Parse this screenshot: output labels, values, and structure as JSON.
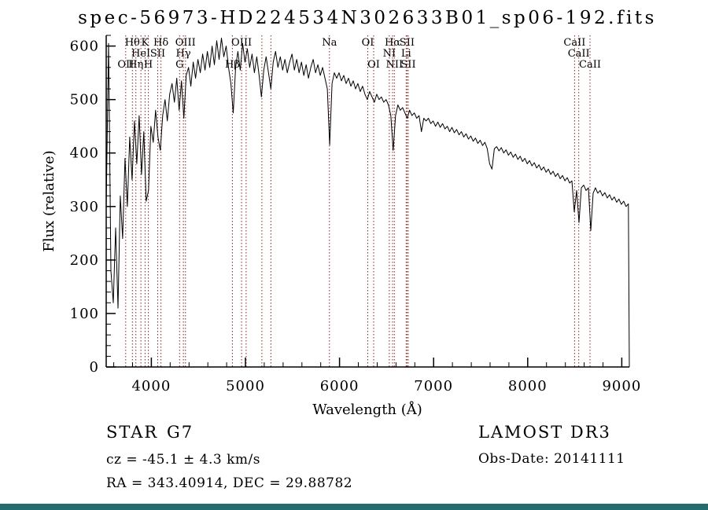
{
  "colors": {
    "marker": "#8b2020",
    "spectrum": "#000000",
    "axis": "#000000",
    "background": "#ffffff",
    "bottom_bar": "#266b6d"
  },
  "annotations": {
    "class": "STAR",
    "subclass": "G7",
    "survey": "LAMOST DR3",
    "cz": "cz = -45.1 ± 4.3 km/s",
    "radec": "RA = 343.40914, DEC = 29.88782",
    "obs_date": "Obs-Date: 20141111"
  },
  "chart_data": {
    "type": "line",
    "title": "spec-56973-HD224534N302633B01_sp06-192.fits",
    "xlabel": "Wavelength (Å)",
    "ylabel": "Flux (relative)",
    "xlim": [
      3520,
      9080
    ],
    "ylim": [
      0,
      620
    ],
    "x_ticks_major": [
      4000,
      5000,
      6000,
      7000,
      8000,
      9000
    ],
    "x_minor_step": 200,
    "y_ticks_major": [
      0,
      100,
      200,
      300,
      400,
      500,
      600
    ],
    "y_minor_step": 20,
    "grid": false,
    "legend": "none",
    "x_start": 3520,
    "x_step": 25,
    "flux": [
      300,
      605,
      180,
      120,
      260,
      110,
      320,
      240,
      390,
      300,
      430,
      350,
      460,
      380,
      470,
      360,
      440,
      310,
      330,
      450,
      420,
      480,
      430,
      405,
      470,
      500,
      460,
      510,
      530,
      495,
      540,
      480,
      535,
      465,
      545,
      560,
      525,
      570,
      540,
      575,
      550,
      585,
      555,
      590,
      560,
      600,
      565,
      610,
      575,
      615,
      580,
      600,
      560,
      530,
      475,
      560,
      590,
      555,
      605,
      570,
      595,
      560,
      585,
      550,
      580,
      545,
      505,
      555,
      580,
      550,
      520,
      570,
      590,
      560,
      580,
      555,
      575,
      550,
      570,
      585,
      555,
      575,
      550,
      570,
      545,
      565,
      540,
      560,
      575,
      550,
      565,
      545,
      560,
      540,
      520,
      415,
      530,
      550,
      540,
      550,
      535,
      545,
      530,
      540,
      525,
      535,
      520,
      530,
      515,
      525,
      510,
      500,
      515,
      505,
      495,
      510,
      500,
      505,
      495,
      500,
      490,
      470,
      405,
      470,
      490,
      480,
      485,
      475,
      465,
      480,
      470,
      475,
      465,
      470,
      440,
      465,
      460,
      465,
      455,
      460,
      450,
      458,
      448,
      455,
      445,
      450,
      440,
      448,
      438,
      444,
      434,
      440,
      430,
      436,
      426,
      432,
      422,
      428,
      418,
      424,
      414,
      420,
      408,
      380,
      370,
      408,
      412,
      404,
      410,
      400,
      406,
      396,
      402,
      392,
      398,
      388,
      394,
      384,
      390,
      380,
      386,
      376,
      382,
      372,
      378,
      368,
      374,
      364,
      370,
      360,
      366,
      356,
      362,
      352,
      358,
      348,
      354,
      344,
      348,
      290,
      330,
      270,
      335,
      340,
      330,
      335,
      255,
      325,
      335,
      325,
      330,
      320,
      326,
      316,
      322,
      312,
      318,
      308,
      314,
      304,
      310,
      300,
      305
    ],
    "spectral_lines": [
      {
        "wavelength": 3727,
        "label": "OII",
        "row": 3
      },
      {
        "wavelength": 3798,
        "label": "Hθ",
        "row": 1
      },
      {
        "wavelength": 3835,
        "label": "Hη",
        "row": 3
      },
      {
        "wavelength": 3889,
        "label": "HeI",
        "row": 2
      },
      {
        "wavelength": 3933,
        "label": "K",
        "row": 1
      },
      {
        "wavelength": 3968,
        "label": "H",
        "row": 3
      },
      {
        "wavelength": 4068,
        "label": "SII",
        "row": 2
      },
      {
        "wavelength": 4102,
        "label": "Hδ",
        "row": 1
      },
      {
        "wavelength": 4300,
        "label": "G",
        "row": 3
      },
      {
        "wavelength": 4340,
        "label": "Hγ",
        "row": 2
      },
      {
        "wavelength": 4363,
        "label": "OIII",
        "row": 1
      },
      {
        "wavelength": 4861,
        "label": "Hβ",
        "row": 3
      },
      {
        "wavelength": 4959,
        "label": "OIII",
        "row": 1
      },
      {
        "wavelength": 5007,
        "label": "",
        "row": 1
      },
      {
        "wavelength": 5175,
        "label": "",
        "row": 1
      },
      {
        "wavelength": 5270,
        "label": "",
        "row": 1
      },
      {
        "wavelength": 5893,
        "label": "Na",
        "row": 1
      },
      {
        "wavelength": 6300,
        "label": "OI",
        "row": 1
      },
      {
        "wavelength": 6363,
        "label": "OI",
        "row": 3
      },
      {
        "wavelength": 6529,
        "label": "NI",
        "row": 2
      },
      {
        "wavelength": 6563,
        "label": "Hα",
        "row": 1
      },
      {
        "wavelength": 6583,
        "label": "NII",
        "row": 3
      },
      {
        "wavelength": 6708,
        "label": "Li",
        "row": 2
      },
      {
        "wavelength": 6717,
        "label": "SII",
        "row": 1
      },
      {
        "wavelength": 6731,
        "label": "SII",
        "row": 3
      },
      {
        "wavelength": 8498,
        "label": "CaII",
        "row": 1
      },
      {
        "wavelength": 8542,
        "label": "CaII",
        "row": 2
      },
      {
        "wavelength": 8662,
        "label": "CaII",
        "row": 3
      }
    ]
  }
}
